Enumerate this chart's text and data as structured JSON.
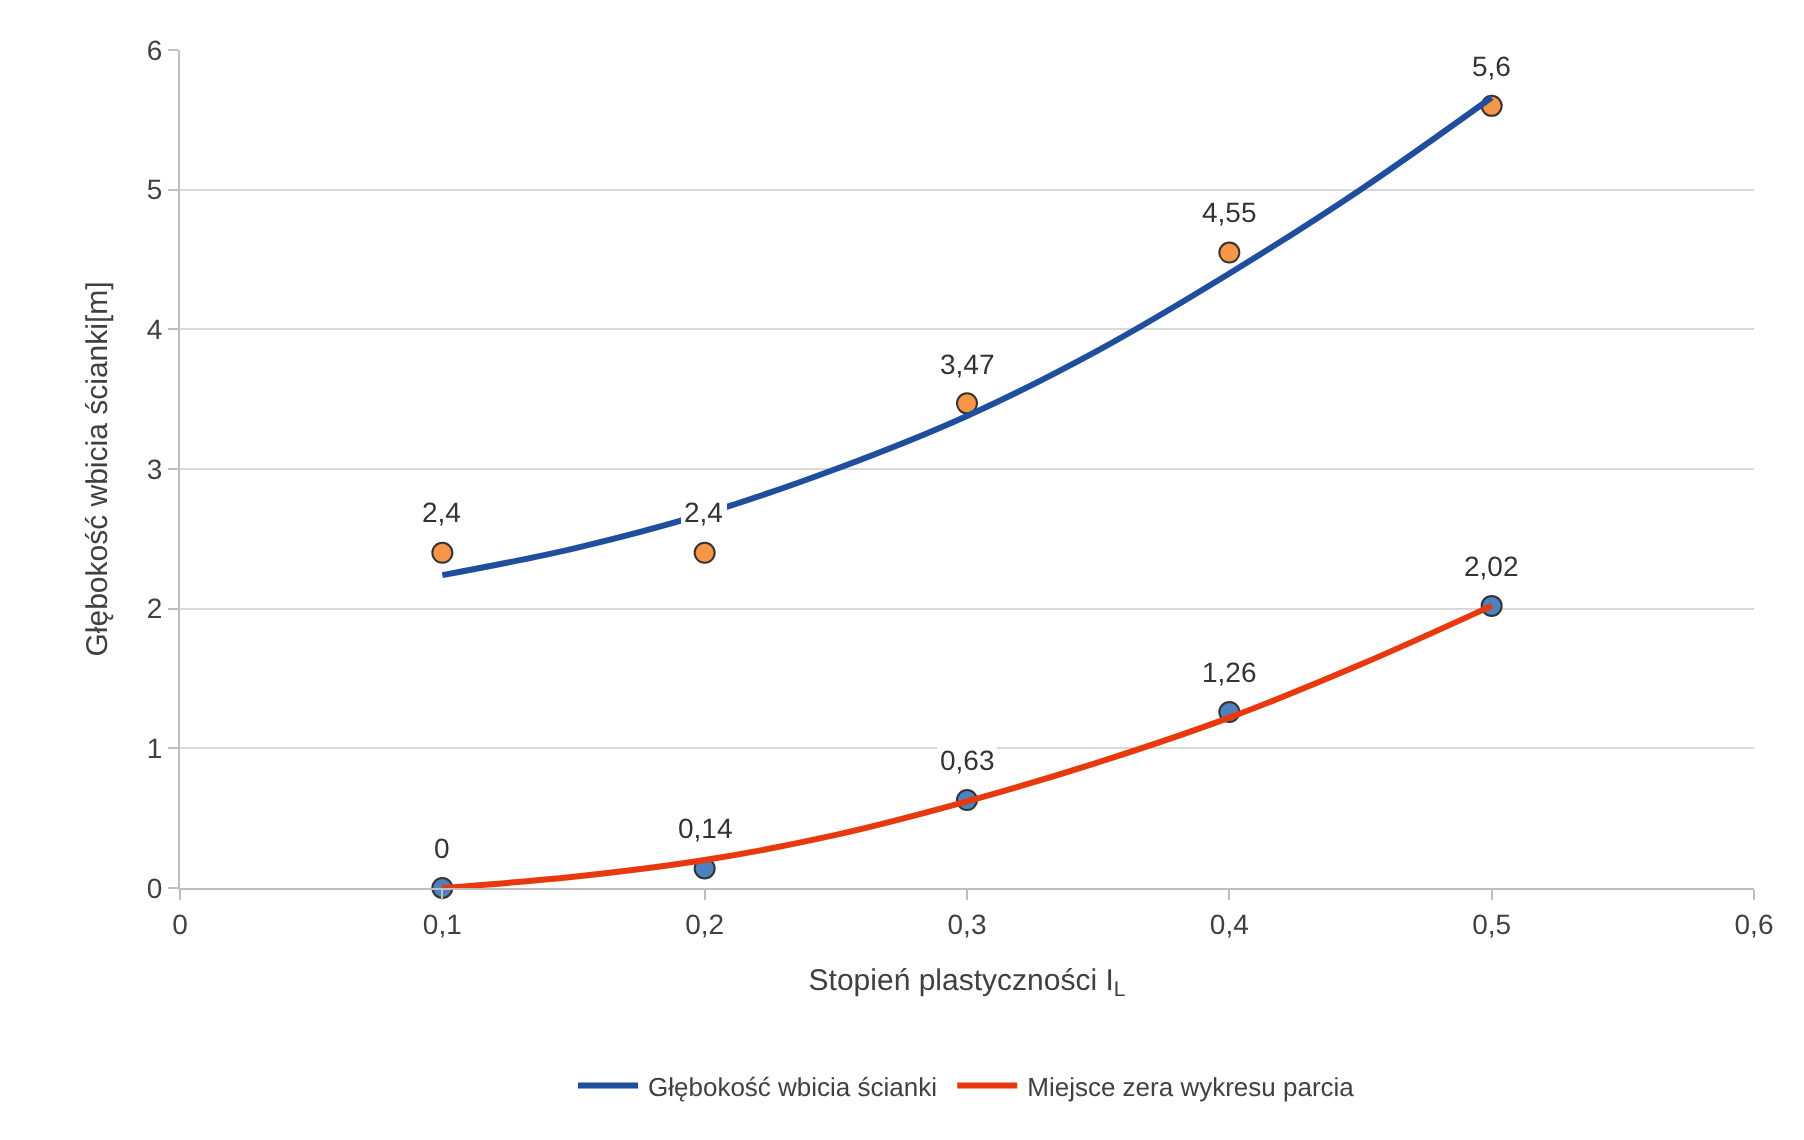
{
  "chart_data": {
    "type": "scatter",
    "xlabel": "Stopień plastyczności I$_{L}$",
    "ylabel": "Głębokość wbicia ścianki[m]",
    "xlim": [
      0,
      0.6
    ],
    "xticks": [
      0,
      {
        "value": 0.1,
        "label": "0,1"
      },
      {
        "value": 0.2,
        "label": "0,2"
      },
      {
        "value": 0.3,
        "label": "0,3"
      },
      {
        "value": 0.4,
        "label": "0,4"
      },
      {
        "value": 0.5,
        "label": "0,5"
      },
      {
        "value": 0.6,
        "label": "0,6"
      }
    ],
    "ylim": [
      0,
      6
    ],
    "yticks": [
      0,
      1,
      2,
      3,
      4,
      5,
      6
    ],
    "grid": "y",
    "legend": "bottom",
    "series": [
      {
        "marker": "circle",
        "color": "#f79646",
        "x": [
          0.1,
          0.2,
          0.3,
          0.4,
          0.5
        ],
        "values": [
          2.4,
          2.4,
          3.47,
          4.55,
          5.6
        ],
        "value_labels": [
          "2,4",
          "2,4",
          "3,47",
          "4,55",
          "5,6"
        ]
      },
      {
        "marker": "circle",
        "color": "#4f81bd",
        "x": [
          0.1,
          0.2,
          0.3,
          0.4,
          0.5
        ],
        "values": [
          0,
          0.14,
          0.63,
          1.26,
          2.02
        ],
        "value_labels": [
          "0",
          "0,14",
          "0,63",
          "1,26",
          "2,02"
        ]
      },
      {
        "type": "line",
        "marker": "none",
        "line_style": "solid",
        "name": "Głębokość wbicia ścianki",
        "color": "#1f4e9c",
        "x": [
          0.1,
          0.15,
          0.2,
          0.25,
          0.3,
          0.35,
          0.4,
          0.45,
          0.5
        ],
        "values": [
          2.24,
          2.43,
          2.68,
          3.0,
          3.38,
          3.85,
          4.4,
          5.0,
          5.66
        ]
      },
      {
        "type": "line",
        "marker": "none",
        "line_style": "solid",
        "name": "Miejsce zera wykresu parcia",
        "color": "#e8380d",
        "x": [
          0.1,
          0.15,
          0.2,
          0.25,
          0.3,
          0.35,
          0.4,
          0.45,
          0.5
        ],
        "values": [
          0.0,
          0.08,
          0.2,
          0.38,
          0.62,
          0.9,
          1.22,
          1.6,
          2.02
        ]
      }
    ]
  }
}
